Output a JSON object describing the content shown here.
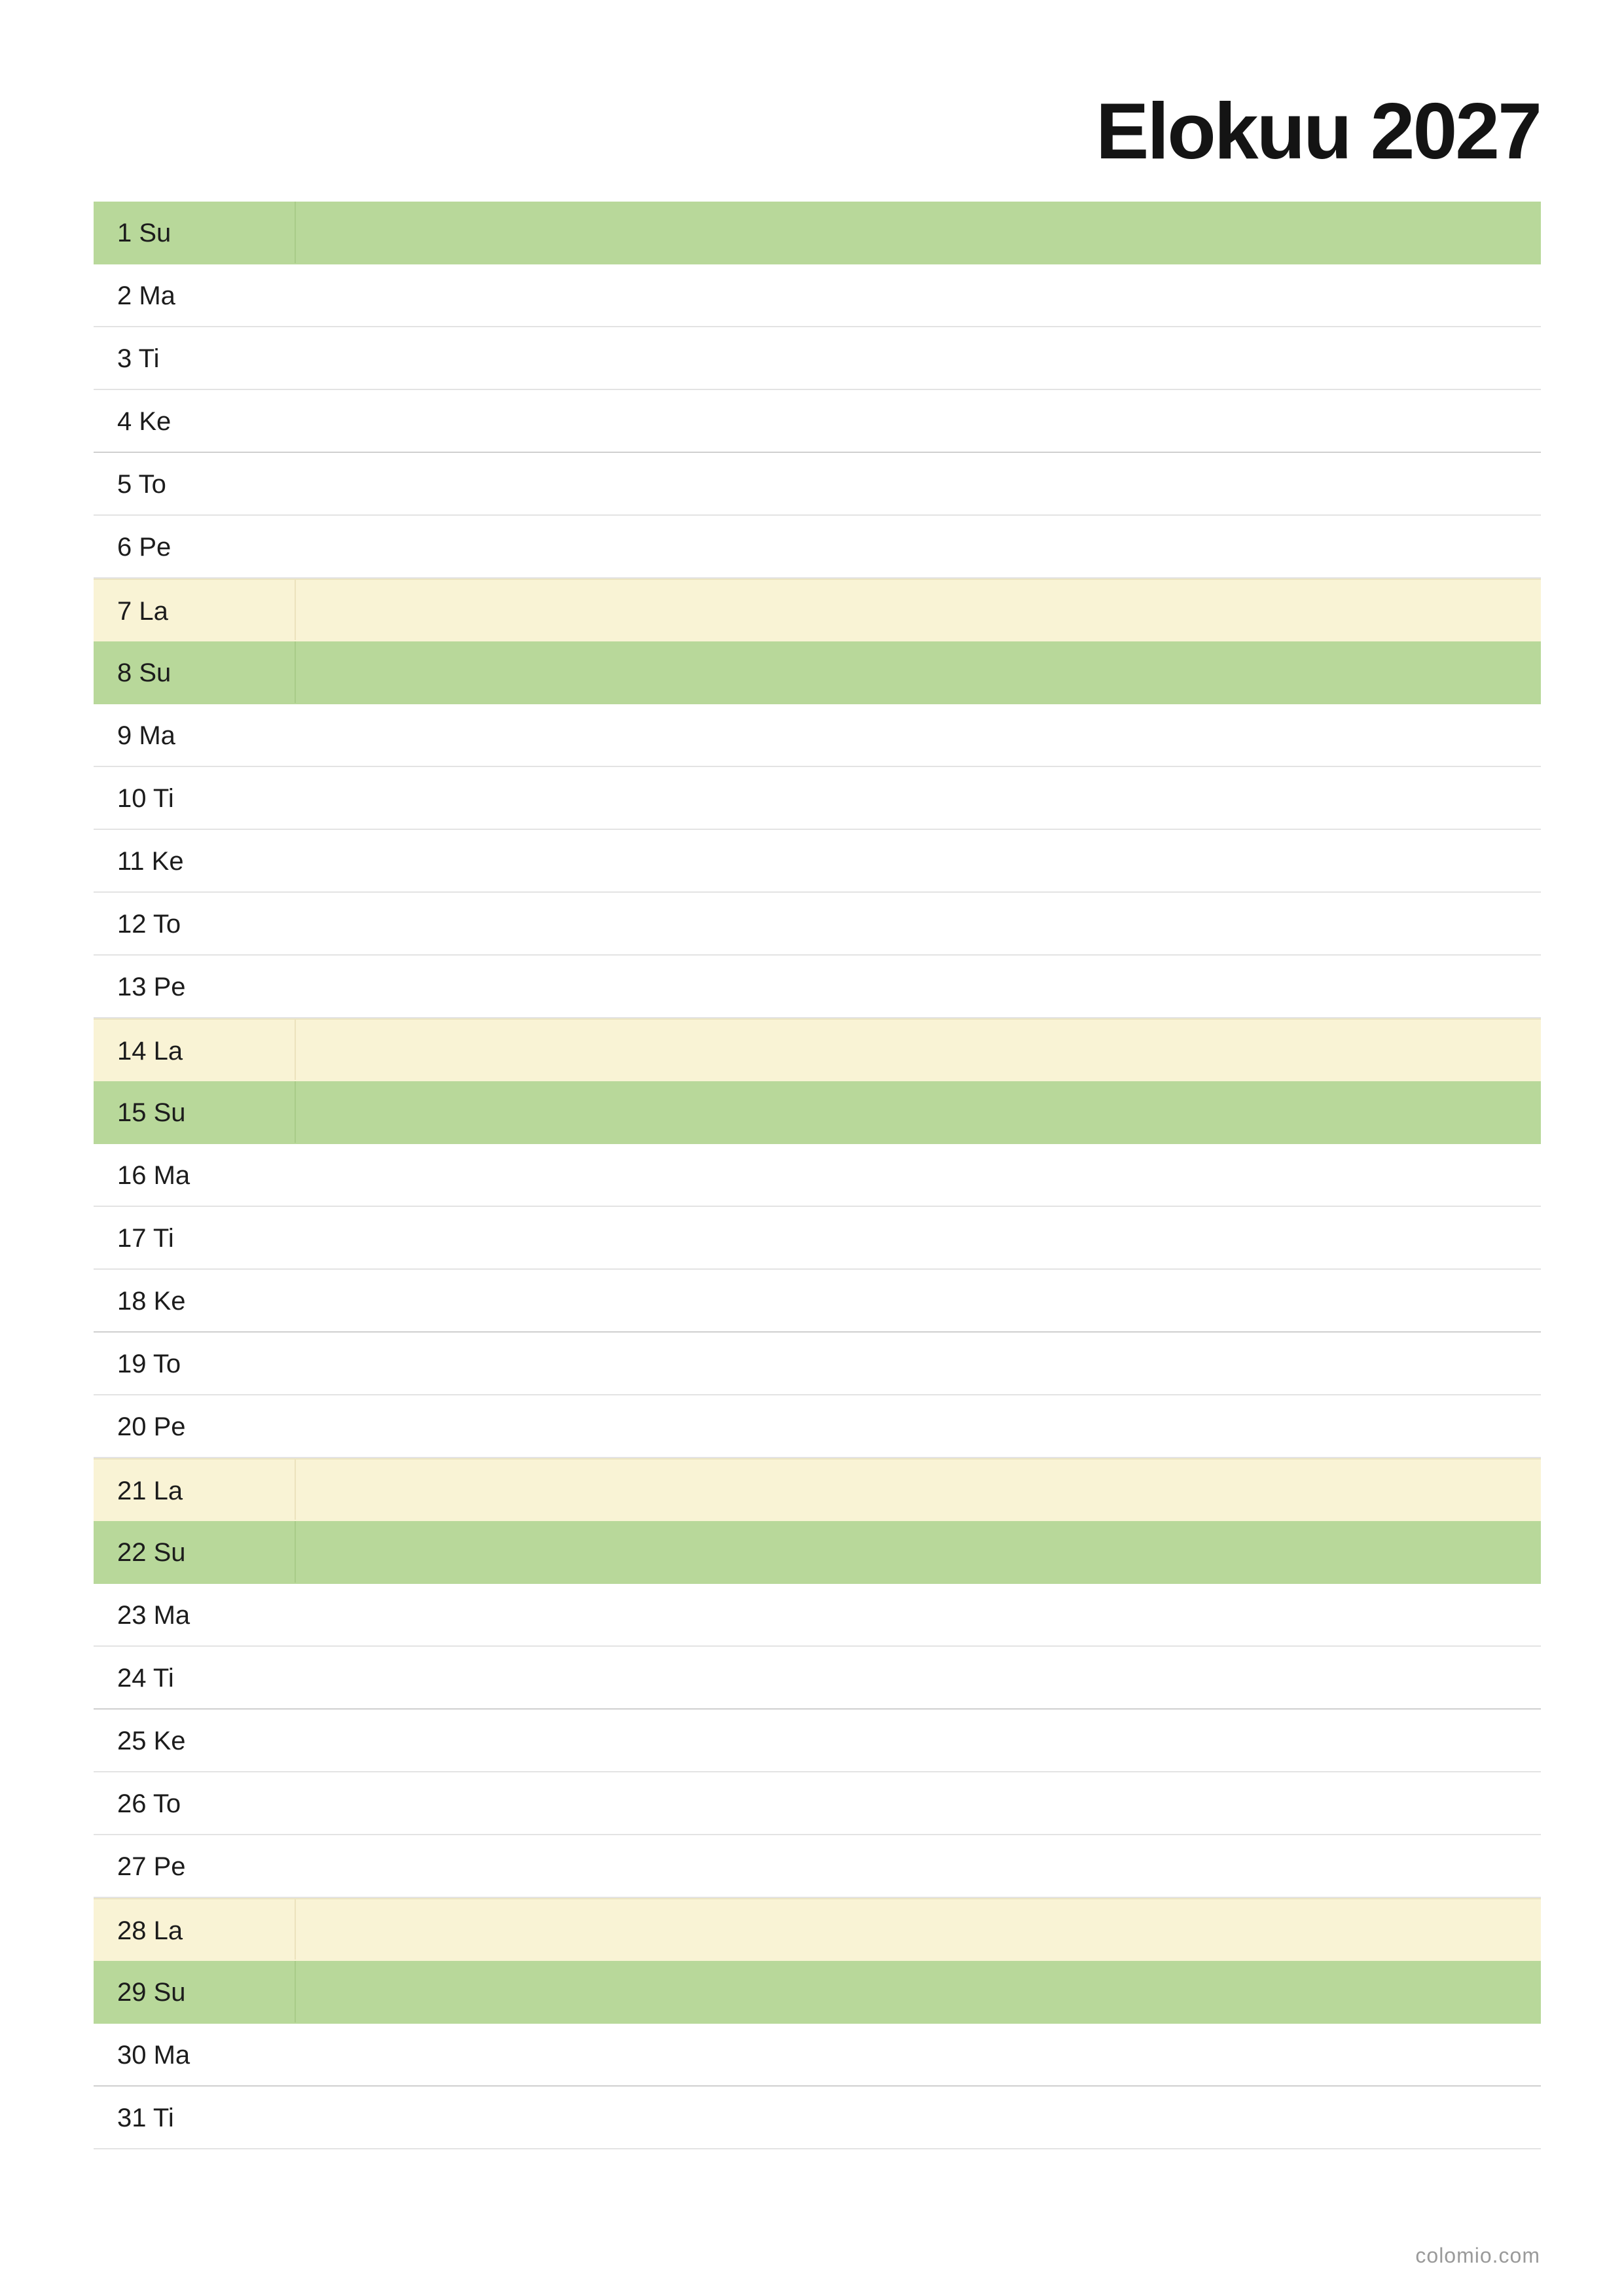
{
  "title": "Elokuu 2027",
  "days": [
    {
      "label": "1 Su",
      "type": "sun"
    },
    {
      "label": "2 Ma",
      "type": "weekday"
    },
    {
      "label": "3 Ti",
      "type": "weekday"
    },
    {
      "label": "4 Ke",
      "type": "weekday"
    },
    {
      "label": "5 To",
      "type": "weekday"
    },
    {
      "label": "6 Pe",
      "type": "weekday"
    },
    {
      "label": "7 La",
      "type": "sat"
    },
    {
      "label": "8 Su",
      "type": "sun"
    },
    {
      "label": "9 Ma",
      "type": "weekday"
    },
    {
      "label": "10 Ti",
      "type": "weekday"
    },
    {
      "label": "11 Ke",
      "type": "weekday"
    },
    {
      "label": "12 To",
      "type": "weekday"
    },
    {
      "label": "13 Pe",
      "type": "weekday"
    },
    {
      "label": "14 La",
      "type": "sat"
    },
    {
      "label": "15 Su",
      "type": "sun"
    },
    {
      "label": "16 Ma",
      "type": "weekday"
    },
    {
      "label": "17 Ti",
      "type": "weekday"
    },
    {
      "label": "18 Ke",
      "type": "weekday"
    },
    {
      "label": "19 To",
      "type": "weekday"
    },
    {
      "label": "20 Pe",
      "type": "weekday"
    },
    {
      "label": "21 La",
      "type": "sat"
    },
    {
      "label": "22 Su",
      "type": "sun"
    },
    {
      "label": "23 Ma",
      "type": "weekday"
    },
    {
      "label": "24 Ti",
      "type": "weekday"
    },
    {
      "label": "25 Ke",
      "type": "weekday"
    },
    {
      "label": "26 To",
      "type": "weekday"
    },
    {
      "label": "27 Pe",
      "type": "weekday"
    },
    {
      "label": "28 La",
      "type": "sat"
    },
    {
      "label": "29 Su",
      "type": "sun"
    },
    {
      "label": "30 Ma",
      "type": "weekday"
    },
    {
      "label": "31 Ti",
      "type": "weekday"
    }
  ],
  "colors": {
    "sunday": "#b8d89a",
    "saturday": "#f9f3d5",
    "grid": "#e3e3e3"
  },
  "footer": "colomio.com"
}
